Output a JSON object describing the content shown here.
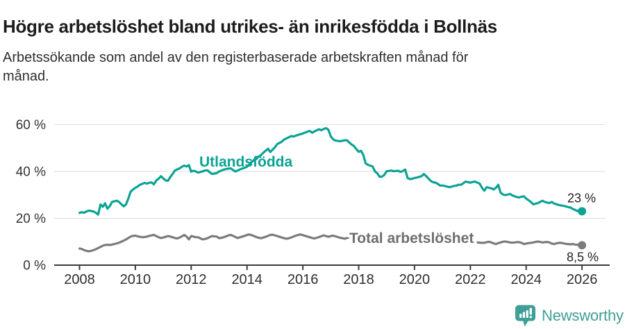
{
  "colors": {
    "teal": "#0ba394",
    "gray_line": "#7b7b7b",
    "gray_label": "#6e6e6e",
    "axis": "#3a3a3a",
    "grid": "#e3e3e3",
    "tick_text": "#333333",
    "value_text": "#222222",
    "logo_teal": "#3f9e96"
  },
  "footer": {
    "brand": "Newsworthy"
  },
  "chart_data": {
    "type": "line",
    "title": "Högre arbetslöshet bland utrikes- än inrikesfödda i Bollnäs",
    "subtitle_lines": [
      "Arbetssökande som andel av den registerbaserade arbetskraften månad för",
      "månad."
    ],
    "x_range": {
      "start": "2008-01",
      "end": "2026-01",
      "frequency": "monthly"
    },
    "x_ticks": [
      2008,
      2010,
      2012,
      2014,
      2016,
      2018,
      2020,
      2022,
      2024,
      2026
    ],
    "y_ticks": [
      {
        "value": 0,
        "label": "0 %"
      },
      {
        "value": 20,
        "label": "20 %"
      },
      {
        "value": 40,
        "label": "40 %"
      },
      {
        "value": 60,
        "label": "60 %"
      }
    ],
    "ylim": [
      0,
      64
    ],
    "grid": true,
    "legend_position": "inline-labels",
    "series": [
      {
        "name": "Utlandsfödda",
        "color": "#0ba394",
        "end_label": "23 %",
        "values": [
          22.3,
          22.6,
          22.4,
          22.9,
          23.3,
          23.1,
          22.9,
          22.4,
          21.6,
          25.9,
          24.9,
          26.4,
          24.1,
          25.2,
          27,
          27.3,
          27.5,
          27,
          26,
          25.1,
          26,
          28.5,
          31.4,
          32.3,
          33,
          33.6,
          34.3,
          34.7,
          35.1,
          34.8,
          35.2,
          35.3,
          34.5,
          36.2,
          36.9,
          38,
          37,
          36.2,
          36,
          37.6,
          38.9,
          40.4,
          40.9,
          41.3,
          42,
          42.5,
          42.1,
          42.7,
          39.9,
          40.3,
          40,
          39.5,
          39.8,
          40.1,
          40.4,
          40.5,
          39.6,
          38.9,
          39.1,
          39.3,
          40,
          40.4,
          40.8,
          41,
          41.2,
          41.3,
          40.6,
          40,
          40.4,
          40.9,
          41.2,
          41.6,
          42,
          43,
          44,
          44.8,
          45.5,
          46.3,
          47,
          48,
          48.8,
          49.7,
          48.3,
          49.3,
          50.3,
          51.7,
          52.2,
          52.7,
          53.7,
          54.1,
          54.6,
          55.1,
          54.9,
          55.3,
          55.6,
          55.9,
          56.2,
          56.6,
          57,
          57.3,
          56.5,
          57.1,
          57.6,
          58,
          57.6,
          58.2,
          58.5,
          57.8,
          55,
          53.7,
          53.2,
          53,
          52.9,
          53.1,
          53.3,
          53.3,
          52.3,
          51.5,
          50.8,
          49.5,
          48.4,
          48.8,
          47,
          43.5,
          42.8,
          42.5,
          42.1,
          40,
          39.2,
          37.7,
          37.8,
          38.5,
          40.1,
          40.2,
          40.4,
          40.1,
          40.2,
          40.3,
          39.8,
          40.2,
          40.8,
          37.2,
          36.7,
          36.9,
          37.2,
          37.4,
          37.7,
          38,
          38.9,
          38,
          37,
          35.9,
          35.4,
          35.2,
          34.7,
          34,
          34,
          33.8,
          33.5,
          33.3,
          33.5,
          33.8,
          34,
          34.3,
          34.3,
          35,
          35.7,
          35.4,
          35.2,
          35.5,
          35.7,
          35.2,
          34.8,
          33,
          31.8,
          33.3,
          33,
          32.8,
          32.3,
          33,
          34.3,
          30.9,
          30.2,
          29.9,
          30.1,
          30.4,
          29.8,
          29.4,
          29.1,
          28.9,
          29.2,
          29.4,
          28.4,
          27.7,
          27,
          26,
          26.2,
          26.5,
          27,
          27.5,
          27,
          26.7,
          26.5,
          27,
          26.3,
          26,
          25.7,
          25.5,
          25.3,
          25.1,
          24.8,
          24.6,
          24,
          23.6,
          23.1,
          23.6,
          23
        ]
      },
      {
        "name": "Total arbetslöshet",
        "color": "#7b7b7b",
        "label_color": "#6e6e6e",
        "end_label": "8,5 %",
        "values": [
          7.1,
          6.9,
          6.4,
          6.1,
          5.9,
          6.1,
          6.4,
          6.8,
          7.3,
          7.8,
          8.3,
          8.6,
          8.7,
          8.6,
          8.8,
          9,
          9.3,
          9.6,
          10,
          10.5,
          11,
          11.6,
          12.2,
          12.5,
          12.6,
          12.3,
          12.1,
          11.9,
          12,
          12.2,
          12.5,
          12.7,
          12.9,
          12.4,
          11.9,
          11.6,
          11.8,
          12.1,
          12.4,
          12.2,
          11.9,
          11.6,
          11.4,
          11.8,
          12.3,
          12.9,
          12.2,
          11,
          12.4,
          12.2,
          11.9,
          11.9,
          11.4,
          11,
          11.2,
          11.5,
          12,
          12.4,
          12.3,
          12.2,
          11.5,
          11.7,
          11.9,
          12.3,
          12.7,
          12.9,
          12.5,
          12,
          11.6,
          11.9,
          12.2,
          12.5,
          12.9,
          13.1,
          12.8,
          12.4,
          12,
          11.7,
          11.5,
          11.8,
          12.1,
          12.5,
          12.9,
          13,
          12.7,
          12.4,
          12.1,
          11.8,
          11.5,
          11.3,
          11.5,
          11.8,
          12.2,
          12.6,
          12.9,
          13.1,
          12.8,
          12.5,
          12.2,
          11.9,
          11.6,
          11.4,
          11.7,
          12,
          12.4,
          12.7,
          12.4,
          12.1,
          12.4,
          12.6,
          12.3,
          12,
          11.7,
          11.5,
          11.3,
          11.6,
          11.9,
          12.2,
          12.5,
          12.3,
          12,
          11.8,
          11.5,
          11.3,
          11.1,
          10.9,
          11.1,
          11.4,
          11.7,
          12,
          11.8,
          11.5,
          11.8,
          12,
          11.7,
          11.5,
          11.3,
          11.1,
          11.3,
          11.6,
          11.9,
          12.1,
          11.9,
          11.7,
          12,
          12.2,
          12.6,
          13,
          13.3,
          13.1,
          12.9,
          12.7,
          12.5,
          12.3,
          12.1,
          12,
          12.2,
          12,
          11.8,
          11.5,
          11.2,
          10.9,
          10.7,
          10.5,
          10.4,
          10.3,
          10.2,
          10.1,
          10.2,
          10,
          9.9,
          9.7,
          9.6,
          9.5,
          9.5,
          9.8,
          10,
          9.7,
          9.3,
          9,
          9.4,
          9.7,
          10,
          10.1,
          9.9,
          9.7,
          9.6,
          9.7,
          9.8,
          9.8,
          9.5,
          9,
          9.2,
          9.4,
          9.5,
          9.7,
          9.9,
          10.1,
          9.9,
          9.7,
          9.8,
          9.9,
          9.7,
          9.2,
          9,
          9.3,
          9.5,
          9.5,
          9.3,
          9.1,
          9,
          8.9,
          9,
          8.8,
          8.7,
          8.8,
          8.5
        ]
      }
    ]
  }
}
